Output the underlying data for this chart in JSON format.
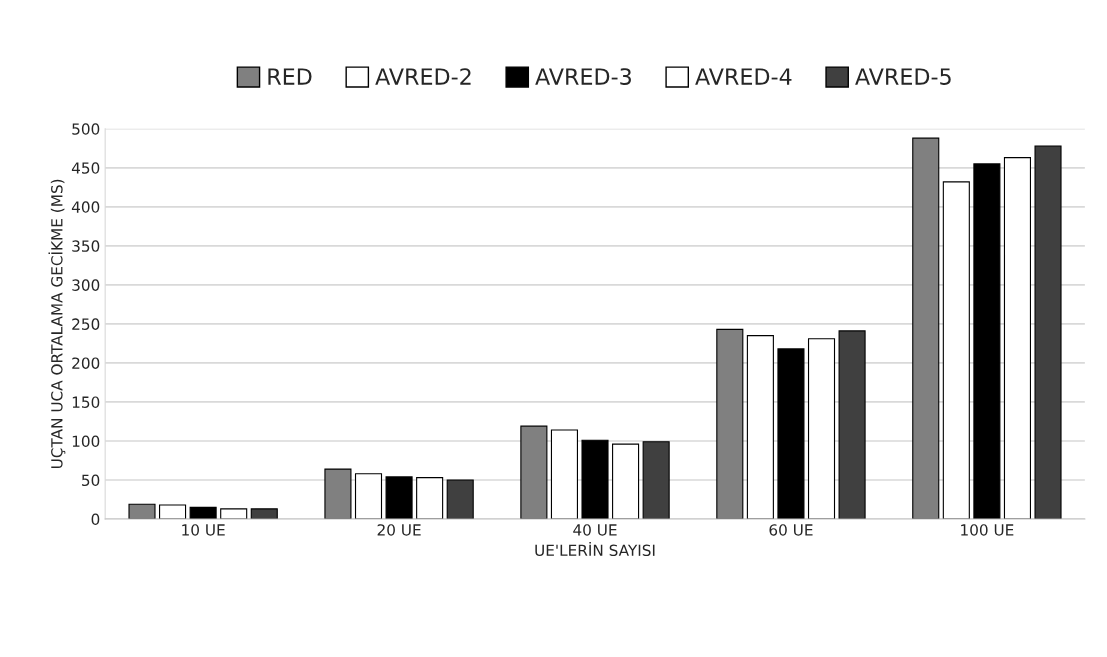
{
  "chart_data": {
    "type": "bar",
    "categories": [
      "10 UE",
      "20 UE",
      "40 UE",
      "60 UE",
      "100 UE"
    ],
    "series": [
      {
        "name": "RED",
        "color": "#808080",
        "values": [
          19,
          64,
          119,
          243,
          488
        ]
      },
      {
        "name": "AVRED-2",
        "color": "#ffffff",
        "values": [
          18,
          58,
          114,
          235,
          432
        ]
      },
      {
        "name": "AVRED-3",
        "color": "#000000",
        "values": [
          15,
          54,
          101,
          218,
          455
        ]
      },
      {
        "name": "AVRED-4",
        "color": "#ffffff",
        "values": [
          13,
          53,
          96,
          231,
          463
        ]
      },
      {
        "name": "AVRED-5",
        "color": "#404040",
        "values": [
          13,
          50,
          99,
          241,
          478
        ]
      }
    ],
    "xlabel": "UE'LERİN SAYISI",
    "ylabel": "UÇTAN UCA ORTALAMA GECİKME (MS)",
    "ylim": [
      0,
      500
    ],
    "yticks": [
      0,
      50,
      100,
      150,
      200,
      250,
      300,
      350,
      400,
      450,
      500
    ],
    "grid": "y",
    "legend": "top"
  }
}
